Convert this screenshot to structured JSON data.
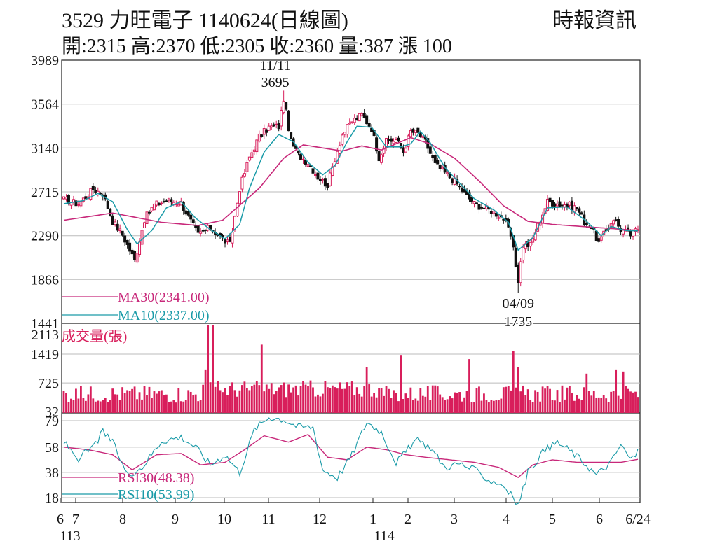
{
  "header": {
    "title": "3529  力旺電子 1140624(日線圖)",
    "source": "時報資訊",
    "ohlc": "開:2315 高:2370 低:2305 收:2360 量:387 漲 100"
  },
  "colors": {
    "up": "#d81e5b",
    "down": "#111111",
    "ma30": "#c8287a",
    "ma10": "#1a9ba8",
    "volume": "#d81e5b",
    "grid": "#bbbbbb"
  },
  "chart_data": [
    {
      "type": "candlestick",
      "panel": "price",
      "y_ticks": [
        3989,
        3564,
        3140,
        2715,
        2290,
        1866,
        1441
      ],
      "ylim": [
        1441,
        3989
      ],
      "x_tick_labels": [
        "6",
        "7",
        "8",
        "9",
        "10",
        "11",
        "12",
        "1",
        "2",
        "3",
        "4",
        "5",
        "6",
        "6/24"
      ],
      "x_sub_labels": [
        "113",
        "114"
      ],
      "annotations": [
        {
          "date": "11/11",
          "value": 3695,
          "kind": "high"
        },
        {
          "date": "04/09",
          "value": 1735,
          "kind": "low"
        }
      ],
      "legend": [
        {
          "label": "MA30(2341.00)",
          "color": "#c8287a"
        },
        {
          "label": "MA10(2337.00)",
          "color": "#1a9ba8"
        }
      ],
      "close_waypoints": [
        [
          0,
          2640
        ],
        [
          6,
          2600
        ],
        [
          12,
          2740
        ],
        [
          16,
          2700
        ],
        [
          20,
          2430
        ],
        [
          24,
          2300
        ],
        [
          29,
          2050
        ],
        [
          33,
          2450
        ],
        [
          37,
          2590
        ],
        [
          42,
          2630
        ],
        [
          48,
          2610
        ],
        [
          52,
          2430
        ],
        [
          55,
          2300
        ],
        [
          60,
          2370
        ],
        [
          64,
          2280
        ],
        [
          68,
          2200
        ],
        [
          72,
          2750
        ],
        [
          76,
          3050
        ],
        [
          80,
          3250
        ],
        [
          84,
          3340
        ],
        [
          88,
          3350
        ],
        [
          90,
          3620
        ],
        [
          93,
          3200
        ],
        [
          96,
          3070
        ],
        [
          100,
          3000
        ],
        [
          104,
          2860
        ],
        [
          108,
          2780
        ],
        [
          111,
          3040
        ],
        [
          114,
          3270
        ],
        [
          118,
          3400
        ],
        [
          122,
          3460
        ],
        [
          126,
          3330
        ],
        [
          129,
          3050
        ],
        [
          132,
          3200
        ],
        [
          136,
          3220
        ],
        [
          139,
          3100
        ],
        [
          142,
          3300
        ],
        [
          145,
          3280
        ],
        [
          148,
          3200
        ],
        [
          152,
          2980
        ],
        [
          156,
          2900
        ],
        [
          160,
          2820
        ],
        [
          164,
          2700
        ],
        [
          168,
          2600
        ],
        [
          172,
          2560
        ],
        [
          176,
          2520
        ],
        [
          180,
          2460
        ],
        [
          183,
          2290
        ],
        [
          186,
          1860
        ],
        [
          188,
          2200
        ],
        [
          191,
          2200
        ],
        [
          194,
          2390
        ],
        [
          198,
          2620
        ],
        [
          202,
          2600
        ],
        [
          206,
          2590
        ],
        [
          210,
          2560
        ],
        [
          213,
          2430
        ],
        [
          216,
          2370
        ],
        [
          219,
          2220
        ],
        [
          222,
          2340
        ],
        [
          225,
          2460
        ],
        [
          228,
          2350
        ],
        [
          232,
          2300
        ],
        [
          235,
          2360
        ]
      ],
      "ma30_waypoints": [
        [
          0,
          2440
        ],
        [
          20,
          2510
        ],
        [
          40,
          2420
        ],
        [
          55,
          2390
        ],
        [
          65,
          2440
        ],
        [
          80,
          2750
        ],
        [
          90,
          3040
        ],
        [
          98,
          3170
        ],
        [
          106,
          3140
        ],
        [
          114,
          3110
        ],
        [
          122,
          3160
        ],
        [
          130,
          3120
        ],
        [
          142,
          3240
        ],
        [
          150,
          3180
        ],
        [
          160,
          3040
        ],
        [
          170,
          2820
        ],
        [
          180,
          2580
        ],
        [
          190,
          2430
        ],
        [
          200,
          2400
        ],
        [
          212,
          2380
        ],
        [
          224,
          2360
        ],
        [
          235,
          2341
        ]
      ],
      "ma10_waypoints": [
        [
          0,
          2600
        ],
        [
          8,
          2630
        ],
        [
          14,
          2700
        ],
        [
          20,
          2620
        ],
        [
          26,
          2350
        ],
        [
          30,
          2210
        ],
        [
          36,
          2340
        ],
        [
          42,
          2560
        ],
        [
          48,
          2620
        ],
        [
          54,
          2460
        ],
        [
          60,
          2350
        ],
        [
          66,
          2260
        ],
        [
          72,
          2400
        ],
        [
          76,
          2750
        ],
        [
          82,
          3100
        ],
        [
          88,
          3270
        ],
        [
          94,
          3200
        ],
        [
          100,
          3000
        ],
        [
          106,
          2880
        ],
        [
          111,
          2970
        ],
        [
          116,
          3200
        ],
        [
          120,
          3350
        ],
        [
          126,
          3340
        ],
        [
          132,
          3150
        ],
        [
          138,
          3150
        ],
        [
          142,
          3180
        ],
        [
          146,
          3300
        ],
        [
          150,
          3190
        ],
        [
          156,
          2950
        ],
        [
          162,
          2800
        ],
        [
          168,
          2650
        ],
        [
          176,
          2540
        ],
        [
          182,
          2420
        ],
        [
          186,
          2150
        ],
        [
          192,
          2270
        ],
        [
          198,
          2560
        ],
        [
          206,
          2570
        ],
        [
          214,
          2430
        ],
        [
          220,
          2290
        ],
        [
          224,
          2380
        ],
        [
          230,
          2340
        ],
        [
          235,
          2337
        ]
      ]
    },
    {
      "type": "bar",
      "panel": "volume",
      "label": "成交量(張)",
      "y_ticks": [
        2113,
        1419,
        725,
        32
      ],
      "ylim": [
        0,
        2113
      ],
      "spikes": [
        [
          58,
          1050
        ],
        [
          59,
          2113
        ],
        [
          61,
          2113
        ],
        [
          81,
          1650
        ],
        [
          124,
          1100
        ],
        [
          138,
          1400
        ],
        [
          166,
          1300
        ],
        [
          184,
          1500
        ],
        [
          186,
          1100
        ],
        [
          214,
          950
        ],
        [
          226,
          1050
        ],
        [
          229,
          1000
        ],
        [
          235,
          387
        ]
      ]
    },
    {
      "type": "line",
      "panel": "rsi",
      "y_ticks": [
        79,
        58,
        38,
        18
      ],
      "ylim": [
        18,
        79
      ],
      "legend": [
        {
          "label": "RSI30(48.38)",
          "color": "#c8287a"
        },
        {
          "label": "RSI10(53.99)",
          "color": "#1a9ba8"
        }
      ],
      "rsi30_waypoints": [
        [
          0,
          58
        ],
        [
          10,
          56
        ],
        [
          20,
          52
        ],
        [
          28,
          40
        ],
        [
          38,
          52
        ],
        [
          48,
          53
        ],
        [
          56,
          44
        ],
        [
          66,
          46
        ],
        [
          74,
          56
        ],
        [
          82,
          67
        ],
        [
          92,
          62
        ],
        [
          100,
          68
        ],
        [
          108,
          50
        ],
        [
          116,
          48
        ],
        [
          124,
          58
        ],
        [
          132,
          56
        ],
        [
          140,
          52
        ],
        [
          148,
          50
        ],
        [
          158,
          48
        ],
        [
          168,
          46
        ],
        [
          178,
          42
        ],
        [
          186,
          34
        ],
        [
          192,
          44
        ],
        [
          200,
          48
        ],
        [
          210,
          46
        ],
        [
          220,
          46
        ],
        [
          228,
          46
        ],
        [
          235,
          48.38
        ]
      ],
      "rsi10_waypoints": [
        [
          0,
          62
        ],
        [
          6,
          49
        ],
        [
          12,
          58
        ],
        [
          16,
          70
        ],
        [
          20,
          62
        ],
        [
          26,
          36
        ],
        [
          32,
          42
        ],
        [
          40,
          63
        ],
        [
          48,
          66
        ],
        [
          54,
          58
        ],
        [
          60,
          44
        ],
        [
          66,
          52
        ],
        [
          72,
          38
        ],
        [
          78,
          72
        ],
        [
          84,
          82
        ],
        [
          90,
          80
        ],
        [
          96,
          74
        ],
        [
          102,
          74
        ],
        [
          106,
          40
        ],
        [
          112,
          34
        ],
        [
          118,
          52
        ],
        [
          124,
          78
        ],
        [
          130,
          70
        ],
        [
          136,
          46
        ],
        [
          140,
          54
        ],
        [
          144,
          64
        ],
        [
          150,
          58
        ],
        [
          156,
          42
        ],
        [
          162,
          45
        ],
        [
          168,
          40
        ],
        [
          174,
          32
        ],
        [
          180,
          28
        ],
        [
          186,
          12
        ],
        [
          190,
          38
        ],
        [
          196,
          54
        ],
        [
          202,
          62
        ],
        [
          208,
          54
        ],
        [
          214,
          44
        ],
        [
          218,
          36
        ],
        [
          224,
          46
        ],
        [
          228,
          60
        ],
        [
          232,
          48
        ],
        [
          235,
          53.99
        ]
      ]
    }
  ]
}
